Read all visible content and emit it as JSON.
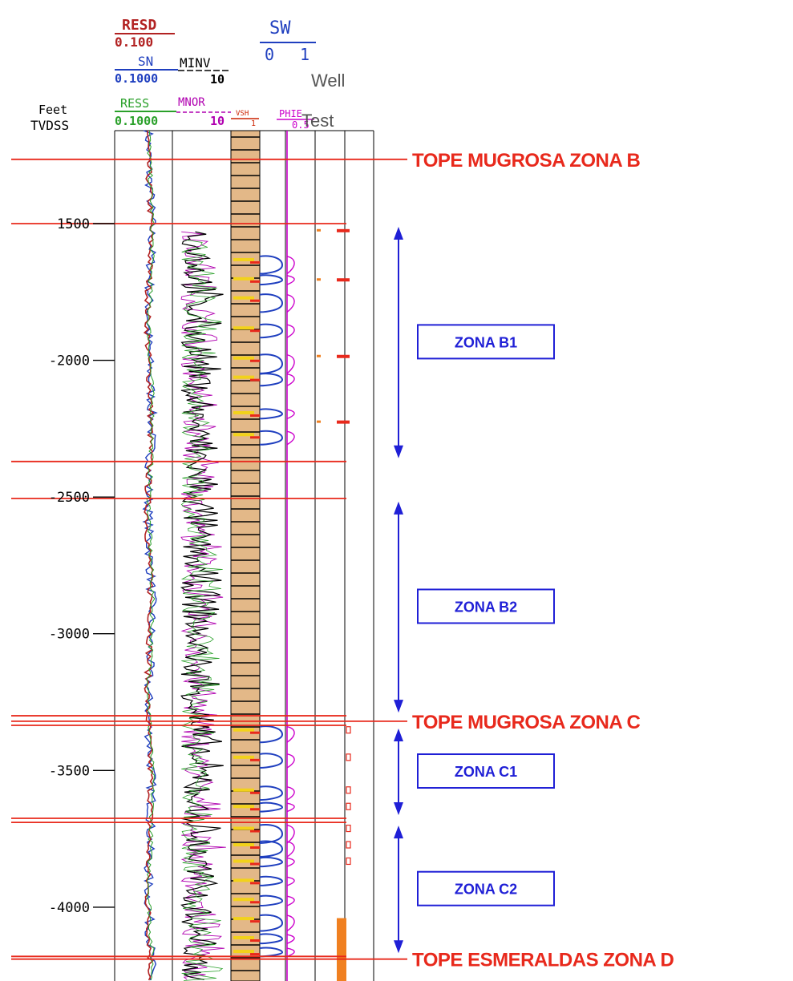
{
  "header": {
    "resd": {
      "name": "RESD",
      "scale": "0.100",
      "color": "#b22222"
    },
    "sn": {
      "name": "SN",
      "scale": "0.1000",
      "color": "#1f3fbf"
    },
    "minv": {
      "name": "MINV",
      "scale": "10",
      "color": "#000000"
    },
    "ress": {
      "name": "RESS",
      "scale": "0.1000",
      "color": "#2aa02a"
    },
    "mnor": {
      "name": "MNOR",
      "scale": "10",
      "color": "#b000b0"
    },
    "vsh": {
      "name": "VSH",
      "scale": "1",
      "color": "#cc2200"
    },
    "sw": {
      "name": "SW",
      "min": "0",
      "max": "1",
      "color": "#1f3fbf"
    },
    "phie": {
      "name": "PHIE",
      "scale": "0.5",
      "color": "#cc00cc"
    },
    "well_test": {
      "line1": "Well",
      "line2": "Test"
    },
    "depth": {
      "unit": "Feet",
      "ref": "TVDSS"
    }
  },
  "depth_scale": {
    "top": 1160,
    "bottom": 4270,
    "ticks": [
      {
        "value": 1500,
        "label": "1500"
      },
      {
        "value": 2000,
        "label": "-2000"
      },
      {
        "value": 2500,
        "label": "-2500"
      },
      {
        "value": 3000,
        "label": "-3000"
      },
      {
        "value": 3500,
        "label": "-3500"
      },
      {
        "value": 4000,
        "label": "-4000"
      }
    ]
  },
  "markers": [
    {
      "label": "TOPE  MUGROSA ZONA B",
      "depth": 1265
    },
    {
      "label": "TOPE  MUGROSA ZONA C",
      "depth": 3320
    },
    {
      "label": "TOPE  ESMERALDAS ZONA D",
      "depth": 4190
    }
  ],
  "zone_lines": [
    1265,
    1500,
    2370,
    2505,
    3300,
    3320,
    3335,
    3675,
    3690,
    4180,
    4190
  ],
  "zones": [
    {
      "label": "ZONA B1",
      "top": 1500,
      "bottom": 2370
    },
    {
      "label": "ZONA B2",
      "top": 2505,
      "bottom": 3300
    },
    {
      "label": "ZONA C1",
      "top": 3335,
      "bottom": 3675
    },
    {
      "label": "ZONA C2",
      "top": 3690,
      "bottom": 4180
    }
  ],
  "colors": {
    "marker": "#e8291c",
    "zone": "#1f1fd6",
    "sand": "#e3b888"
  }
}
